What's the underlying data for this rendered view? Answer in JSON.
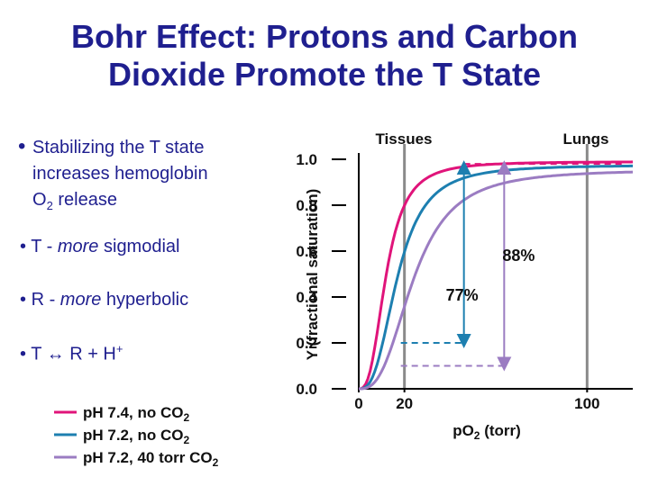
{
  "title": {
    "line1": "Bohr Effect: Protons and Carbon",
    "line2": "Dioxide Promote the T State"
  },
  "bullets": {
    "b1": {
      "line1": "Stabilizing the T state",
      "line2": "increases hemoglobin",
      "line3_pre": "O",
      "line3_sub": "2",
      "line3_post": " release"
    },
    "b2": {
      "pre": "T - ",
      "em": "more",
      "post": " sigmodial"
    },
    "b3": {
      "pre": "R - ",
      "em": "more",
      "post": " hyperbolic"
    },
    "b4": {
      "pre": "T ↔ R + H",
      "sup": "+"
    },
    "marker": "•"
  },
  "chart_data": {
    "type": "line",
    "xlabel_pre": "pO",
    "xlabel_sub": "2",
    "xlabel_post": " (torr)",
    "ylabel": "Y (fractional saturation)",
    "xlim": [
      0,
      120
    ],
    "ylim": [
      0,
      1.0
    ],
    "x_ticks": [
      "0",
      "20",
      "100"
    ],
    "y_ticks": [
      "0.0",
      "0.2",
      "0.4",
      "0.6",
      "0.8",
      "1.0"
    ],
    "region_labels": {
      "tissues": "Tissues",
      "lungs": "Lungs"
    },
    "reference_lines_x": [
      20,
      100
    ],
    "series": [
      {
        "name": "pH 7.4, no CO2",
        "legend_pre": "pH 7.4, no CO",
        "legend_sub": "2",
        "color": "#e0147a",
        "p50": 12,
        "n": 2.8,
        "ymax": 0.99
      },
      {
        "name": "pH 7.2, no CO2",
        "legend_pre": "pH 7.2, no CO",
        "legend_sub": "2",
        "color": "#1d7fb0",
        "p50": 17,
        "n": 2.8,
        "ymax": 0.975
      },
      {
        "name": "pH 7.2, 40 torr CO2",
        "legend_pre": "pH 7.2, 40 torr CO",
        "legend_sub": "2",
        "color": "#9b7cc2",
        "p50": 24,
        "n": 2.8,
        "ymax": 0.955
      }
    ],
    "annotations": [
      {
        "text": "77%",
        "x": 20,
        "from": 0.2,
        "to": 0.98,
        "color": "#1d7fb0"
      },
      {
        "text": "88%",
        "x": 100,
        "from": 0.1,
        "to": 0.98,
        "color": "#9b7cc2"
      }
    ]
  }
}
